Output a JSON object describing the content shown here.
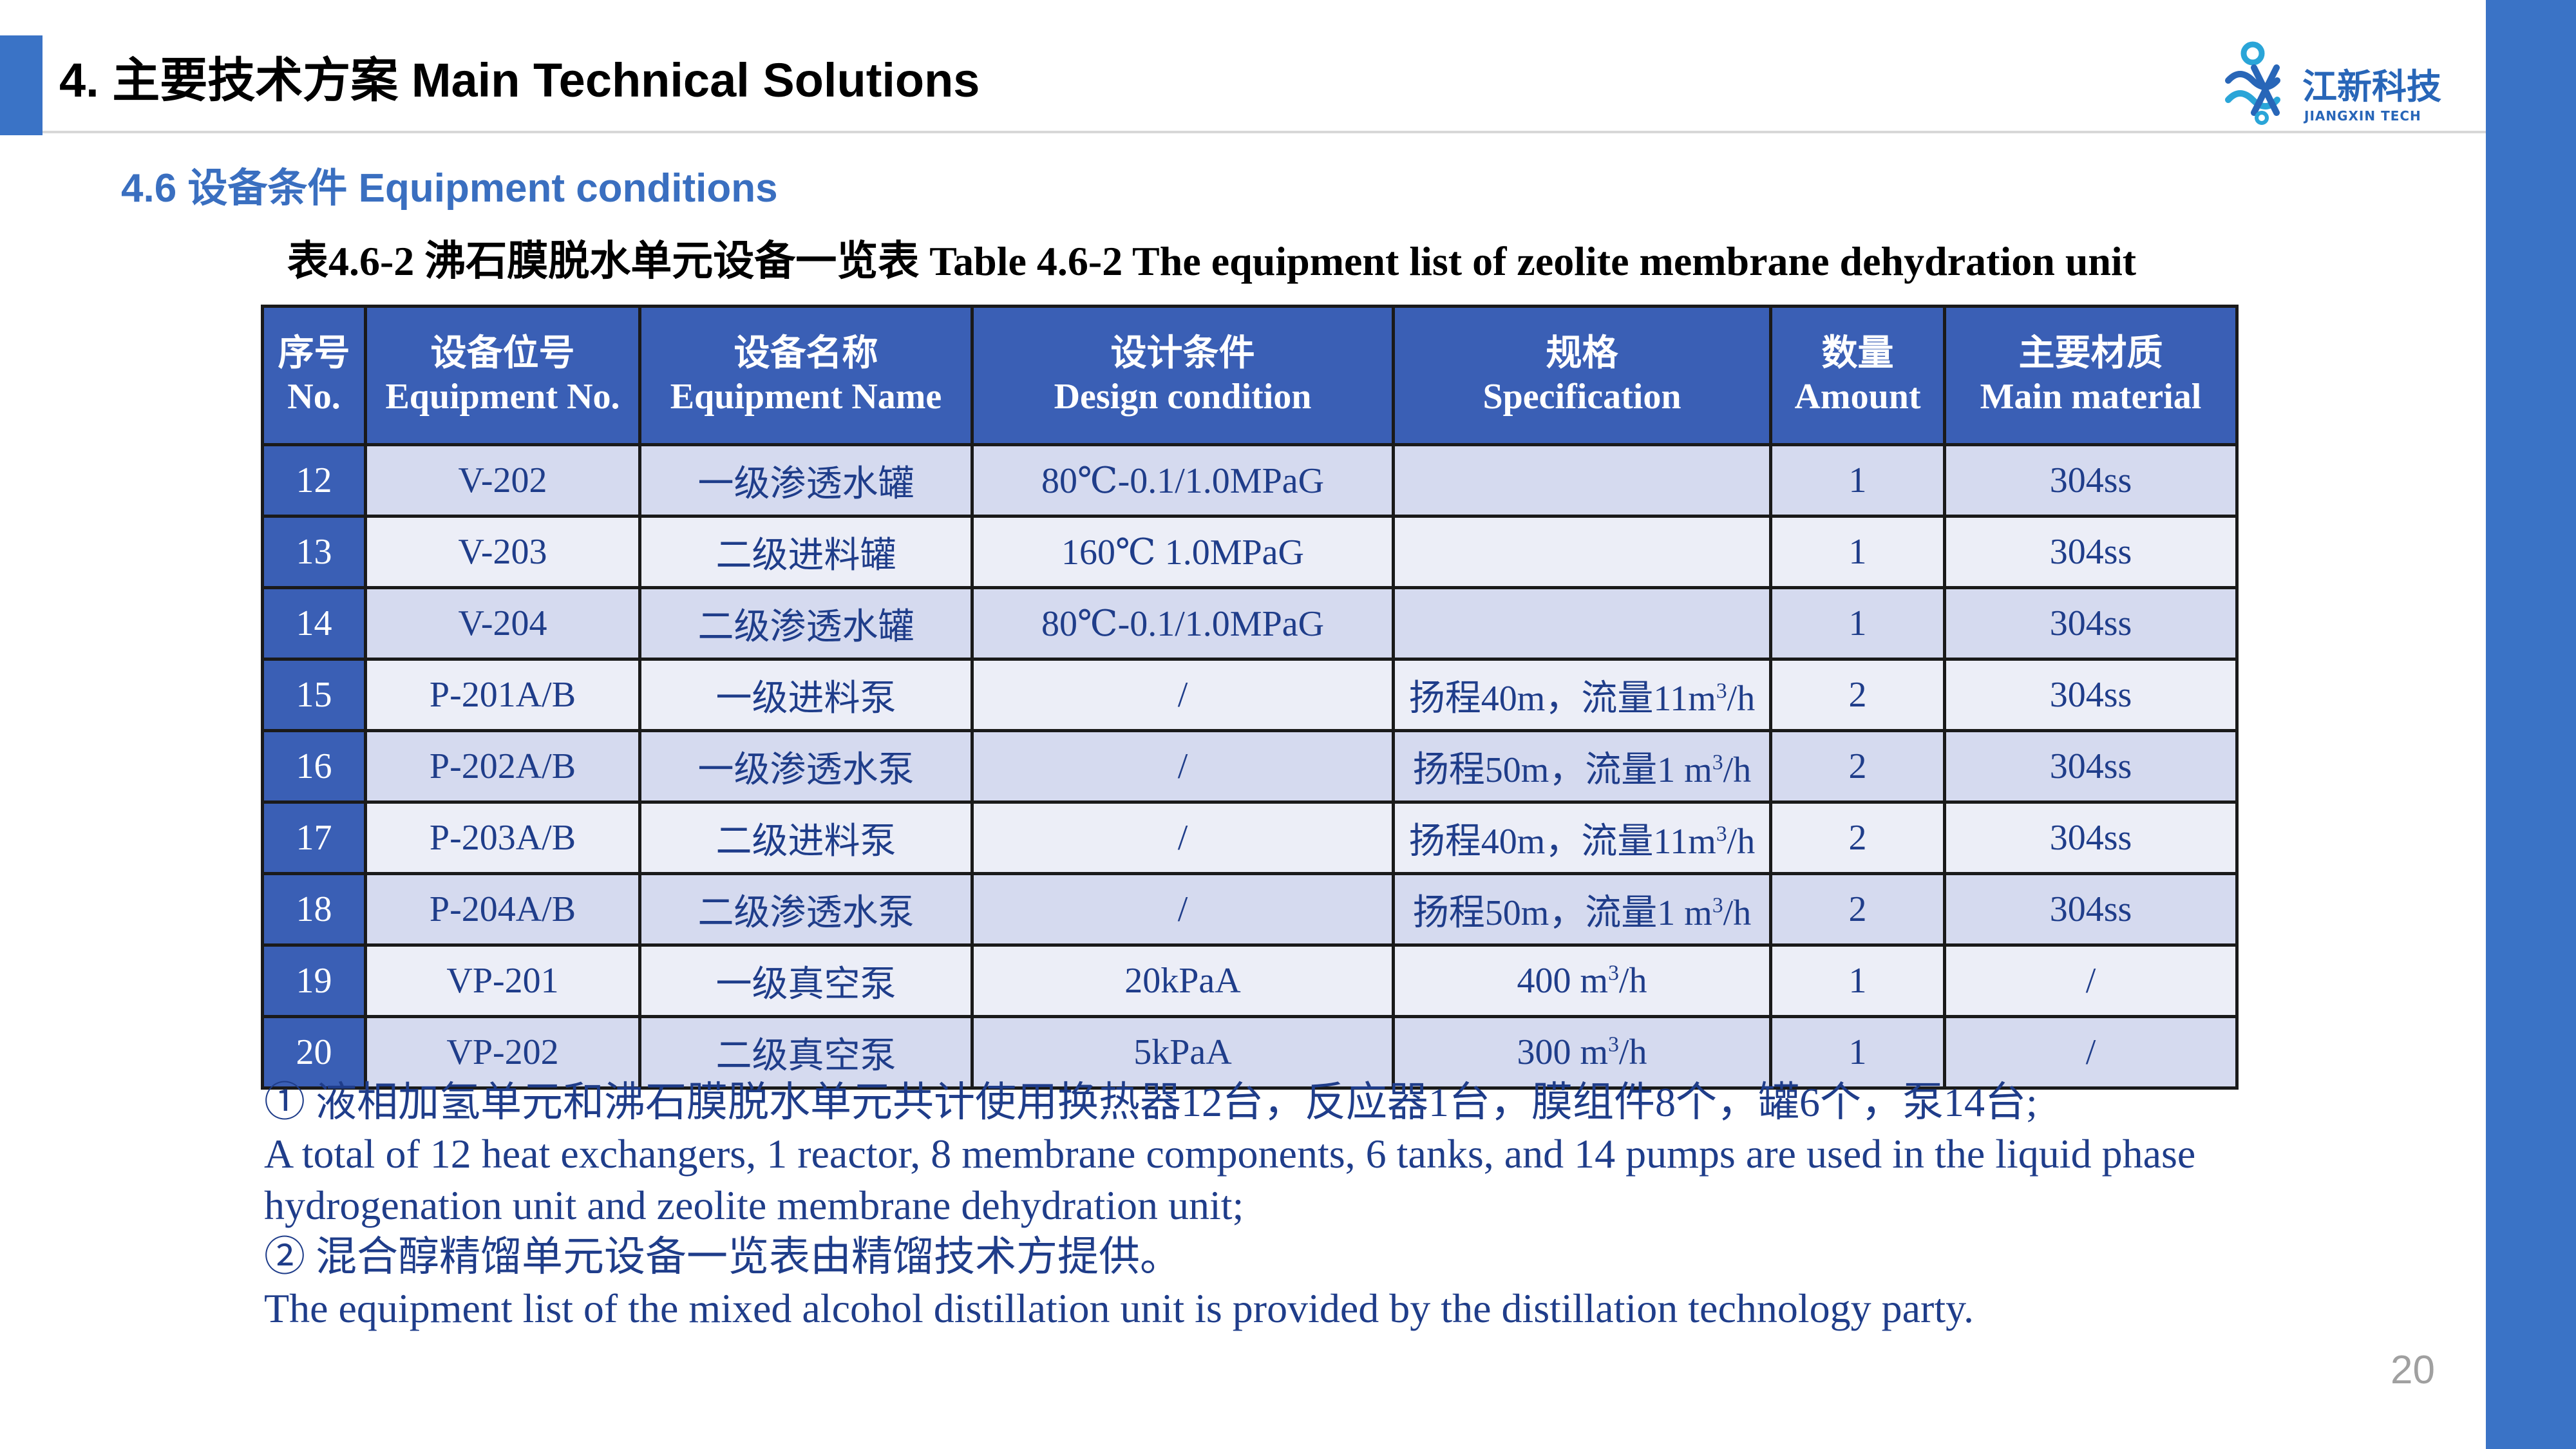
{
  "header": {
    "title": "4. 主要技术方案 Main Technical Solutions",
    "logo": {
      "icon": "jiangxin-logo-icon",
      "name": "江新科技",
      "subtitle": "JIANGXIN TECH"
    }
  },
  "section": {
    "title": "4.6 设备条件 Equipment conditions"
  },
  "table": {
    "caption": "表4.6-2  沸石膜脱水单元设备一览表  Table 4.6-2 The equipment list of zeolite membrane dehydration unit",
    "headers": [
      {
        "cn": "序号",
        "en": "No."
      },
      {
        "cn": "设备位号",
        "en": "Equipment No."
      },
      {
        "cn": "设备名称",
        "en": "Equipment Name"
      },
      {
        "cn": "设计条件",
        "en": "Design condition"
      },
      {
        "cn": "规格",
        "en": "Specification"
      },
      {
        "cn": "数量",
        "en": "Amount"
      },
      {
        "cn": "主要材质",
        "en": "Main material"
      }
    ],
    "rows": [
      {
        "no": "12",
        "equipment_no": "V-202",
        "name": "一级渗透水罐",
        "design": "80℃-0.1/1.0MPaG",
        "spec_pre": "",
        "spec_sup": "",
        "spec_post": "",
        "amount": "1",
        "material": "304ss"
      },
      {
        "no": "13",
        "equipment_no": "V-203",
        "name": "二级进料罐",
        "design": "160℃ 1.0MPaG",
        "spec_pre": "",
        "spec_sup": "",
        "spec_post": "",
        "amount": "1",
        "material": "304ss"
      },
      {
        "no": "14",
        "equipment_no": "V-204",
        "name": "二级渗透水罐",
        "design": "80℃-0.1/1.0MPaG",
        "spec_pre": "",
        "spec_sup": "",
        "spec_post": "",
        "amount": "1",
        "material": "304ss"
      },
      {
        "no": "15",
        "equipment_no": "P-201A/B",
        "name": "一级进料泵",
        "design": "/",
        "spec_pre": "扬程40m，流量11m",
        "spec_sup": "3",
        "spec_post": "/h",
        "amount": "2",
        "material": "304ss"
      },
      {
        "no": "16",
        "equipment_no": "P-202A/B",
        "name": "一级渗透水泵",
        "design": "/",
        "spec_pre": "扬程50m，流量1 m",
        "spec_sup": "3",
        "spec_post": "/h",
        "amount": "2",
        "material": "304ss"
      },
      {
        "no": "17",
        "equipment_no": "P-203A/B",
        "name": "二级进料泵",
        "design": "/",
        "spec_pre": "扬程40m，流量11m",
        "spec_sup": "3",
        "spec_post": "/h",
        "amount": "2",
        "material": "304ss"
      },
      {
        "no": "18",
        "equipment_no": "P-204A/B",
        "name": "二级渗透水泵",
        "design": "/",
        "spec_pre": "扬程50m，流量1 m",
        "spec_sup": "3",
        "spec_post": "/h",
        "amount": "2",
        "material": "304ss"
      },
      {
        "no": "19",
        "equipment_no": "VP-201",
        "name": "一级真空泵",
        "design": "20kPaA",
        "spec_pre": "400 m",
        "spec_sup": "3",
        "spec_post": "/h",
        "amount": "1",
        "material": "/"
      },
      {
        "no": "20",
        "equipment_no": "VP-202",
        "name": "二级真空泵",
        "design": "5kPaA",
        "spec_pre": "300 m",
        "spec_sup": "3",
        "spec_post": "/h",
        "amount": "1",
        "material": "/"
      }
    ]
  },
  "notes": [
    "①  液相加氢单元和沸石膜脱水单元共计使用换热器12台，反应器1台，膜组件8个，罐6个，泵14台;",
    "A total of 12 heat exchangers, 1 reactor, 8 membrane components, 6 tanks, and 14 pumps are used in the liquid phase hydrogenation unit and zeolite membrane dehydration unit;",
    "②  混合醇精馏单元设备一览表由精馏技术方提供。",
    "The equipment list of the mixed alcohol distillation unit is provided by the distillation technology party."
  ],
  "page_number": "20",
  "colors": {
    "accent": "#3a73c6",
    "header_fill": "#3a5fb5",
    "row_odd": "#d5daef",
    "row_even": "#eceef7",
    "text_blue": "#1f3d8a"
  }
}
